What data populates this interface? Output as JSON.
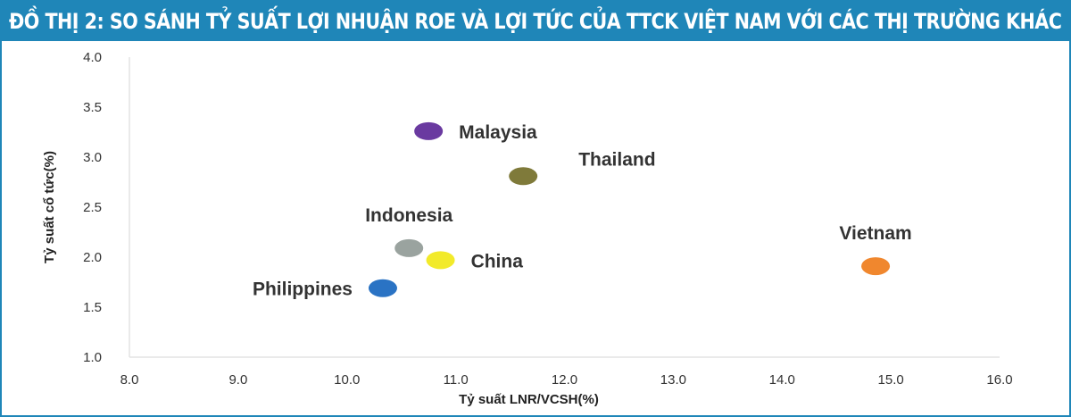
{
  "title": "ĐỒ THỊ 2: SO SÁNH TỶ SUẤT LỢI NHUẬN ROE VÀ LỢI TỨC CỦA TTCK VIỆT NAM VỚI CÁC THỊ TRƯỜNG KHÁC",
  "chart_data": {
    "type": "scatter",
    "title": "ĐỒ THỊ 2: SO SÁNH TỶ SUẤT LỢI NHUẬN ROE VÀ LỢI TỨC CỦA TTCK VIỆT NAM VỚI CÁC THỊ TRƯỜNG KHÁC",
    "xlabel": "Tỷ suất LNR/VCSH(%)",
    "ylabel": "Tỷ suất cổ tức(%)",
    "xlim": [
      8.0,
      16.0
    ],
    "ylim": [
      1.0,
      4.0
    ],
    "xticks": [
      "8.0",
      "9.0",
      "10.0",
      "11.0",
      "12.0",
      "13.0",
      "14.0",
      "15.0",
      "16.0"
    ],
    "yticks": [
      "1.0",
      "1.5",
      "2.0",
      "2.5",
      "3.0",
      "3.5",
      "4.0"
    ],
    "grid": false,
    "points": [
      {
        "label": "Malaysia",
        "x": 10.75,
        "y": 3.26,
        "color": "#6a3aa0",
        "label_side": "right"
      },
      {
        "label": "Thailand",
        "x": 11.62,
        "y": 2.81,
        "color": "#7f7a3a",
        "label_side": "above-right"
      },
      {
        "label": "Indonesia",
        "x": 10.57,
        "y": 2.09,
        "color": "#9aa39f",
        "label_side": "above"
      },
      {
        "label": "China",
        "x": 10.86,
        "y": 1.97,
        "color": "#f2ea2a",
        "label_side": "right"
      },
      {
        "label": "Philippines",
        "x": 10.33,
        "y": 1.69,
        "color": "#2a73c4",
        "label_side": "left"
      },
      {
        "label": "Vietnam",
        "x": 14.86,
        "y": 1.91,
        "color": "#f0872e",
        "label_side": "above"
      }
    ]
  }
}
